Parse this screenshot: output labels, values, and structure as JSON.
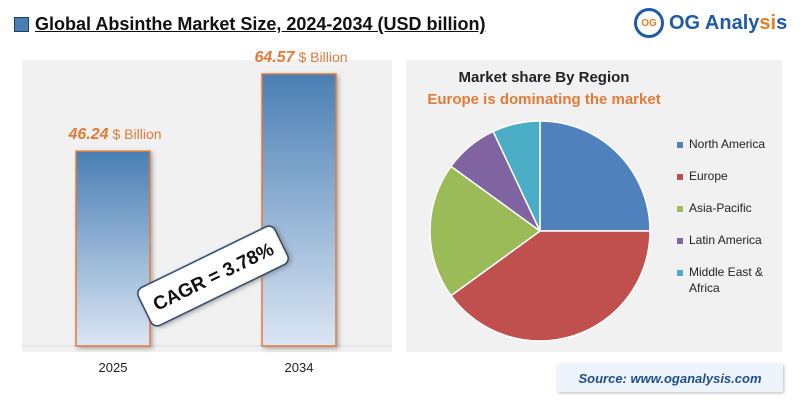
{
  "header": {
    "title": "Global Absinthe Market Size, 2024-2034 (USD billion)"
  },
  "logo": {
    "badge": "OG",
    "name_main": "OG Analy",
    "name_accent": "si",
    "name_tail": "s"
  },
  "chart_data": [
    {
      "type": "bar",
      "categories": [
        "2025",
        "2034"
      ],
      "values": [
        46.24,
        64.57
      ],
      "value_labels": [
        "46.24",
        "64.57"
      ],
      "value_unit": "$ Billion",
      "ylim": [
        0,
        75
      ],
      "annotation": "CAGR = 3.78%",
      "bar_color": "#4a7fb5",
      "label_color": "#e07b39"
    },
    {
      "type": "pie",
      "title": "Market share By Region",
      "subtitle": "Europe is dominating the market",
      "labels": [
        "North America",
        "Europe",
        "Asia-Pacific",
        "Latin America",
        "Middle East & Africa"
      ],
      "legend_lines": [
        [
          "North America"
        ],
        [
          "Europe"
        ],
        [
          "Asia-Pacific"
        ],
        [
          "Latin America"
        ],
        [
          "Middle East &",
          "Africa"
        ]
      ],
      "values": [
        25,
        40,
        20,
        8,
        7
      ],
      "colors": [
        "#4f81bd",
        "#c0504d",
        "#9bbb59",
        "#8064a2",
        "#4bacc6"
      ],
      "subtitle_color": "#e07b39",
      "legend_position": "right"
    }
  ],
  "footer": {
    "source": "Source: www.oganalysis.com"
  }
}
